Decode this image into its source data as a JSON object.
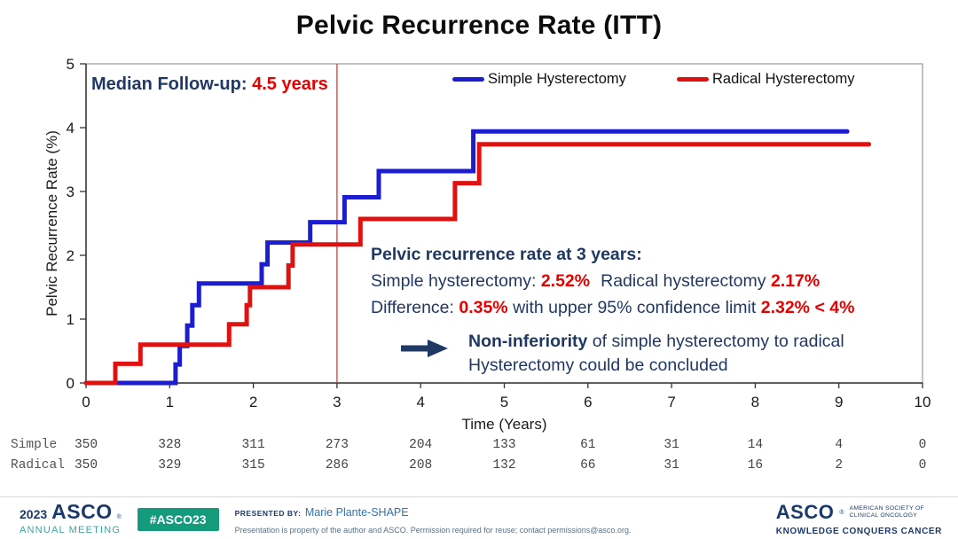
{
  "title": "Pelvic Recurrence Rate (ITT)",
  "colors": {
    "simple_line": "#1d1dd0",
    "radical_line": "#e01111",
    "navy_text": "#1f3864",
    "red_text": "#e60000",
    "reference_line": "#dd3b3b",
    "badge_green": "#149b7c",
    "asco_navy": "#1b3a6b",
    "annual_teal": "#3fa3a0"
  },
  "chart_data": {
    "type": "line",
    "step": true,
    "title": "Pelvic Recurrence Rate (ITT)",
    "xlabel": "Time (Years)",
    "ylabel": "Pelvic Recurrence Rate (%)",
    "xlim": [
      0,
      10
    ],
    "ylim": [
      0,
      5
    ],
    "xticks": [
      0,
      1,
      2,
      3,
      4,
      5,
      6,
      7,
      8,
      9,
      10
    ],
    "yticks": [
      0,
      1,
      2,
      3,
      4,
      5
    ],
    "grid": false,
    "legend_position": "top",
    "reference_line_x": 3,
    "series": [
      {
        "name": "Simple Hysterectomy",
        "color": "#1d1dd0",
        "steps": [
          [
            0,
            0
          ],
          [
            1.07,
            0.29
          ],
          [
            1.12,
            0.58
          ],
          [
            1.21,
            0.9
          ],
          [
            1.27,
            1.22
          ],
          [
            1.35,
            1.56
          ],
          [
            2.1,
            1.86
          ],
          [
            2.17,
            2.2
          ],
          [
            2.68,
            2.52
          ],
          [
            3.09,
            2.91
          ],
          [
            3.5,
            3.32
          ],
          [
            4.63,
            3.94
          ]
        ],
        "end_x": 9.1,
        "value_at_3yr": "2.52%"
      },
      {
        "name": "Radical Hysterectomy",
        "color": "#e01111",
        "steps": [
          [
            0,
            0
          ],
          [
            0.35,
            0.3
          ],
          [
            0.65,
            0.6
          ],
          [
            1.71,
            0.92
          ],
          [
            1.92,
            1.22
          ],
          [
            1.96,
            1.5
          ],
          [
            2.42,
            1.84
          ],
          [
            2.47,
            2.17
          ],
          [
            3.28,
            2.57
          ],
          [
            4.41,
            3.13
          ],
          [
            4.7,
            3.74
          ]
        ],
        "end_x": 9.36,
        "value_at_3yr": "2.17%"
      }
    ]
  },
  "annotations": {
    "median_label": "Median Follow-up:",
    "median_value": " 4.5 years",
    "stats_heading": "Pelvic recurrence rate at 3 years:",
    "stats_line2": [
      {
        "text": "Simple hysterectomy: "
      },
      {
        "text": "2.52%"
      },
      {
        "text": "Radical hysterectomy "
      },
      {
        "text": "2.17%"
      }
    ],
    "stats_line3": [
      {
        "text": "Difference: "
      },
      {
        "text": "0.35%"
      },
      {
        "text": " with upper 95% confidence limit "
      },
      {
        "text": "2.32% < 4%"
      }
    ],
    "conclusion_bold": "Non-inferiority",
    "conclusion_rest": " of simple hysterectomy to radical",
    "conclusion_line2": "Hysterectomy could be concluded"
  },
  "risk_table": {
    "rows": [
      {
        "label": "Simple",
        "values": [
          "350",
          "328",
          "311",
          "273",
          "204",
          "133",
          "61",
          "31",
          "14",
          "4",
          "0"
        ]
      },
      {
        "label": "Radical",
        "values": [
          "350",
          "329",
          "315",
          "286",
          "208",
          "132",
          "66",
          "31",
          "16",
          "2",
          "0"
        ]
      }
    ]
  },
  "footer": {
    "year": "2023",
    "asco": "ASCO",
    "reg": "®",
    "annual_meeting": "ANNUAL MEETING",
    "hashtag": "#ASCO23",
    "presented_by_label": "PRESENTED BY:",
    "presenter": "Marie Plante-SHAPE",
    "disclaimer": "Presentation is property of the author and ASCO. Permission required for reuse; contact permissions@asco.org.",
    "society_line1": "AMERICAN SOCIETY OF",
    "society_line2": "CLINICAL ONCOLOGY",
    "tagline": "KNOWLEDGE CONQUERS CANCER"
  }
}
